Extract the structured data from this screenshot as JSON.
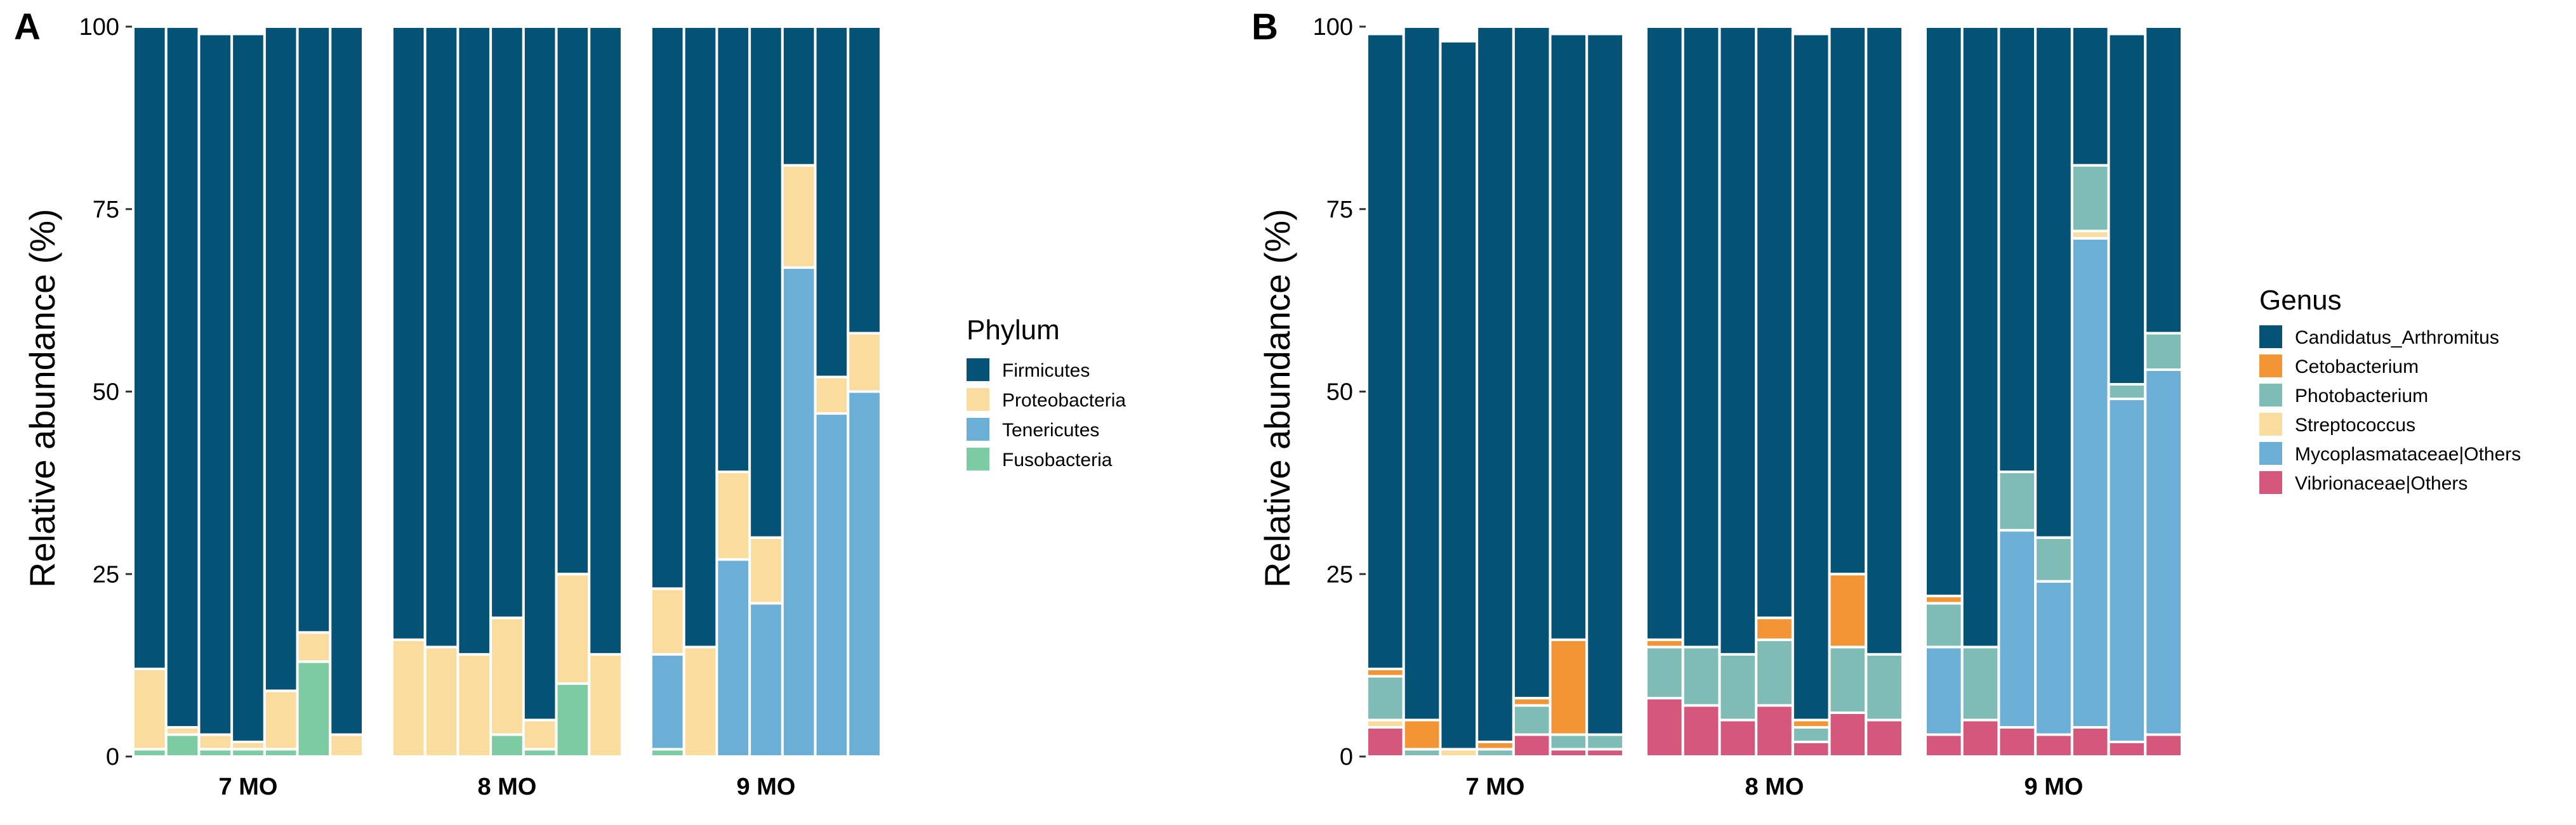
{
  "chart_data": [
    {
      "panel": "A",
      "type": "bar",
      "stacked": true,
      "ylabel": "Relative abundance (%)",
      "ylim": [
        0,
        100
      ],
      "yticks": [
        0,
        25,
        50,
        75,
        100
      ],
      "legend_title": "Phylum",
      "legend_position": "right",
      "facets": [
        "7 MO",
        "8 MO",
        "9 MO"
      ],
      "series": [
        {
          "name": "Fusobacteria",
          "color": "#7ccba2"
        },
        {
          "name": "Tenericutes",
          "color": "#6baed6"
        },
        {
          "name": "Proteobacteria",
          "color": "#fadc9e"
        },
        {
          "name": "Firmicutes",
          "color": "#045275"
        }
      ],
      "legend_order": [
        "Firmicutes",
        "Proteobacteria",
        "Tenericutes",
        "Fusobacteria"
      ],
      "samples": [
        [
          [
            1,
            0,
            11,
            88
          ],
          [
            3,
            0,
            1,
            96
          ],
          [
            1,
            0,
            2,
            96
          ],
          [
            1,
            0,
            1,
            97
          ],
          [
            1,
            0,
            8,
            91
          ],
          [
            13,
            0,
            4,
            83
          ],
          [
            0,
            0,
            3,
            97
          ]
        ],
        [
          [
            0,
            0,
            16,
            84
          ],
          [
            0,
            0,
            15,
            85
          ],
          [
            0,
            0,
            14,
            86
          ],
          [
            3,
            0,
            16,
            81
          ],
          [
            1,
            0,
            4,
            95
          ],
          [
            10,
            0,
            15,
            75
          ],
          [
            0,
            0,
            14,
            86
          ]
        ],
        [
          [
            1,
            13,
            9,
            77
          ],
          [
            0,
            0,
            15,
            85
          ],
          [
            0,
            27,
            12,
            61
          ],
          [
            0,
            21,
            9,
            70
          ],
          [
            0,
            67,
            14,
            19
          ],
          [
            0,
            47,
            5,
            48
          ],
          [
            0,
            50,
            8,
            42
          ]
        ]
      ]
    },
    {
      "panel": "B",
      "type": "bar",
      "stacked": true,
      "ylabel": "Relative abundance (%)",
      "ylim": [
        0,
        100
      ],
      "yticks": [
        0,
        25,
        50,
        75,
        100
      ],
      "legend_title": "Genus",
      "legend_position": "right",
      "facets": [
        "7 MO",
        "8 MO",
        "9 MO"
      ],
      "series": [
        {
          "name": "Vibrionaceae|Others",
          "color": "#d5577b"
        },
        {
          "name": "Mycoplasmataceae|Others",
          "color": "#6baed6"
        },
        {
          "name": "Streptococcus",
          "color": "#fadc9e"
        },
        {
          "name": "Photobacterium",
          "color": "#7fbcb5"
        },
        {
          "name": "Cetobacterium",
          "color": "#f39435"
        },
        {
          "name": "Candidatus_Arthromitus",
          "color": "#045275"
        }
      ],
      "legend_order": [
        "Candidatus_Arthromitus",
        "Cetobacterium",
        "Photobacterium",
        "Streptococcus",
        "Mycoplasmataceae|Others",
        "Vibrionaceae|Others"
      ],
      "samples": [
        [
          [
            4,
            0,
            1,
            6,
            1,
            87
          ],
          [
            0,
            0,
            0,
            1,
            4,
            95
          ],
          [
            0,
            0,
            1,
            0,
            0,
            97
          ],
          [
            0,
            0,
            0,
            1,
            1,
            98
          ],
          [
            3,
            0,
            0,
            4,
            1,
            92
          ],
          [
            1,
            0,
            0,
            2,
            13,
            83
          ],
          [
            1,
            0,
            0,
            2,
            0,
            96
          ]
        ],
        [
          [
            8,
            0,
            0,
            7,
            1,
            84
          ],
          [
            7,
            0,
            0,
            8,
            0,
            85
          ],
          [
            5,
            0,
            0,
            9,
            0,
            86
          ],
          [
            7,
            0,
            0,
            9,
            3,
            81
          ],
          [
            2,
            0,
            0,
            2,
            1,
            94
          ],
          [
            6,
            0,
            0,
            9,
            10,
            75
          ],
          [
            5,
            0,
            0,
            9,
            0,
            86
          ]
        ],
        [
          [
            3,
            12,
            0,
            6,
            1,
            78
          ],
          [
            5,
            0,
            0,
            10,
            0,
            85
          ],
          [
            4,
            27,
            0,
            8,
            0,
            61
          ],
          [
            3,
            21,
            0,
            6,
            0,
            70
          ],
          [
            4,
            67,
            1,
            9,
            0,
            19
          ],
          [
            2,
            47,
            0,
            2,
            0,
            48
          ],
          [
            3,
            50,
            0,
            5,
            0,
            42
          ]
        ]
      ]
    }
  ]
}
